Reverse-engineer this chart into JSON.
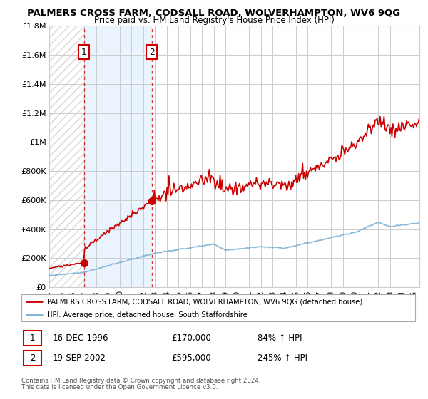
{
  "title": "PALMERS CROSS FARM, CODSALL ROAD, WOLVERHAMPTON, WV6 9QG",
  "subtitle": "Price paid vs. HM Land Registry's House Price Index (HPI)",
  "ylim": [
    0,
    1800000
  ],
  "yticks": [
    0,
    200000,
    400000,
    600000,
    800000,
    1000000,
    1200000,
    1400000,
    1600000,
    1800000
  ],
  "ytick_labels": [
    "£0",
    "£200K",
    "£400K",
    "£600K",
    "£800K",
    "£1M",
    "£1.2M",
    "£1.4M",
    "£1.6M",
    "£1.8M"
  ],
  "xlim_start": 1994.0,
  "xlim_end": 2025.5,
  "xticks": [
    1994,
    1995,
    1996,
    1997,
    1998,
    1999,
    2000,
    2001,
    2002,
    2003,
    2004,
    2005,
    2006,
    2007,
    2008,
    2009,
    2010,
    2011,
    2012,
    2013,
    2014,
    2015,
    2016,
    2017,
    2018,
    2019,
    2020,
    2021,
    2022,
    2023,
    2024,
    2025
  ],
  "sale1_x": 1996.96,
  "sale1_y": 170000,
  "sale1_label": "1",
  "sale1_date": "16-DEC-1996",
  "sale1_price": "£170,000",
  "sale1_hpi": "84% ↑ HPI",
  "sale2_x": 2002.72,
  "sale2_y": 595000,
  "sale2_label": "2",
  "sale2_date": "19-SEP-2002",
  "sale2_price": "£595,000",
  "sale2_hpi": "245% ↑ HPI",
  "sale_color": "#cc0000",
  "hpi_color": "#7bafd4",
  "legend_line1": "PALMERS CROSS FARM, CODSALL ROAD, WOLVERHAMPTON, WV6 9QG (detached house)",
  "legend_line2": "HPI: Average price, detached house, South Staffordshire",
  "footer1": "Contains HM Land Registry data © Crown copyright and database right 2024.",
  "footer2": "This data is licensed under the Open Government Licence v3.0.",
  "grid_color": "#cccccc",
  "background_color": "#ffffff",
  "label_box_color": "#cc0000",
  "shaded_region_color": "#ddeeff"
}
